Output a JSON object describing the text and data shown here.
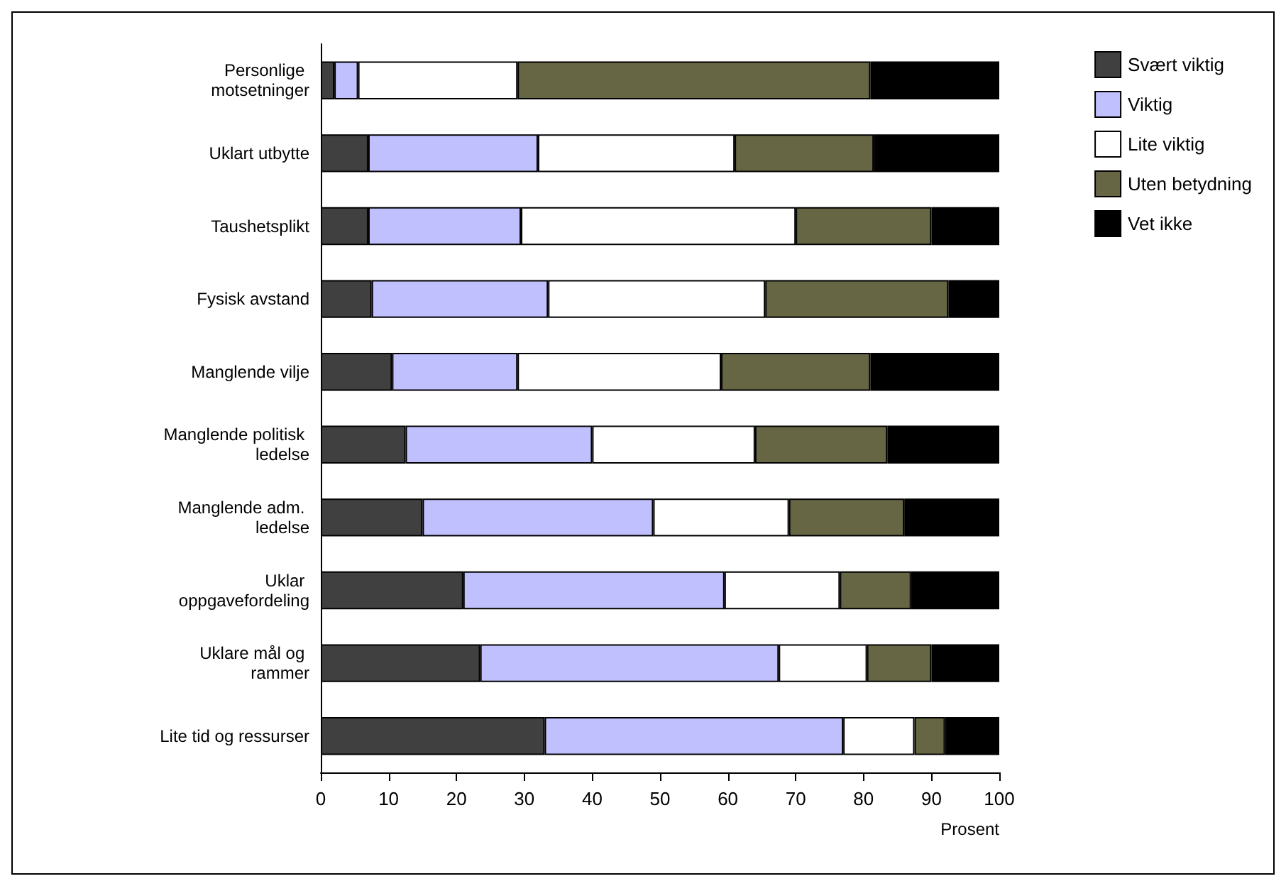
{
  "chart_data": {
    "type": "bar",
    "orientation": "horizontal",
    "stacked": true,
    "xlabel": "Prosent",
    "categories": [
      "Personlige motsetninger",
      "Uklart utbytte",
      "Taushetsplikt",
      "Fysisk avstand",
      "Manglende vilje",
      "Manglende politisk ledelse",
      "Manglende adm. ledelse",
      "Uklar oppgavefordeling",
      "Uklare mål og rammer",
      "Lite tid og ressurser"
    ],
    "series": [
      {
        "name": "Svært viktig",
        "color": "#404040",
        "values": [
          2,
          7,
          7,
          7.5,
          10.5,
          12.5,
          15,
          21,
          23.5,
          33
        ]
      },
      {
        "name": "Viktig",
        "color": "#c0c0ff",
        "values": [
          3.5,
          25,
          22.5,
          26,
          18.5,
          27.5,
          34,
          38.5,
          44,
          44
        ]
      },
      {
        "name": "Lite viktig",
        "color": "#ffffff",
        "values": [
          23.5,
          29,
          40.5,
          32,
          30,
          24,
          20,
          17,
          13,
          10.5
        ]
      },
      {
        "name": "Uten betydning",
        "color": "#666645",
        "values": [
          52,
          20.5,
          20,
          27,
          22,
          19.5,
          17,
          10.5,
          9.5,
          4.5
        ]
      },
      {
        "name": "Vet ikke",
        "color": "#000000",
        "values": [
          19,
          18.5,
          10,
          7.5,
          19,
          16.5,
          14,
          13,
          10,
          8
        ]
      }
    ],
    "xlim": [
      0,
      100
    ],
    "xticks": [
      0,
      10,
      20,
      30,
      40,
      50,
      60,
      70,
      80,
      90,
      100
    ],
    "grid": false,
    "legend": "top right"
  }
}
